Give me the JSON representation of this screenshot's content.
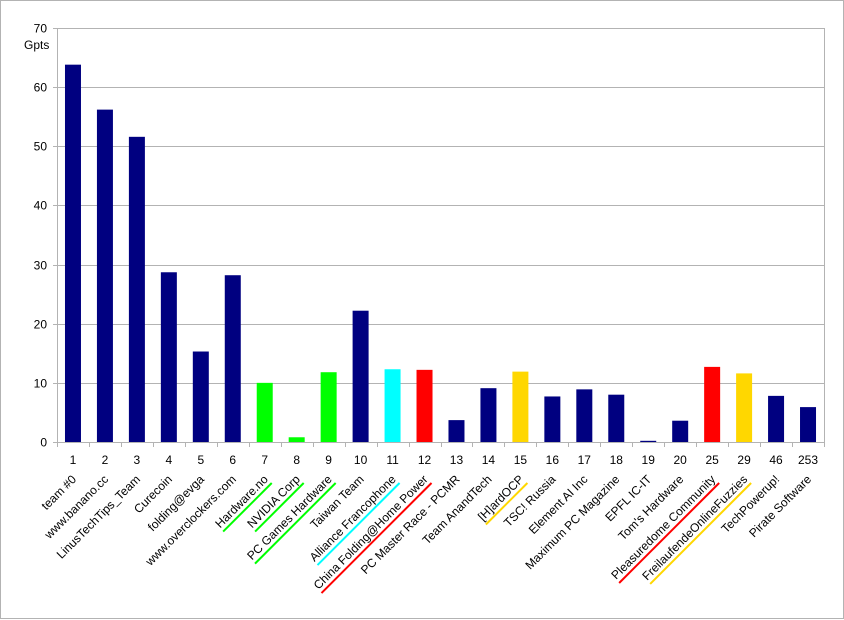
{
  "chart_data": {
    "type": "bar",
    "ylabel": "Gpts",
    "ylim": [
      0,
      70
    ],
    "yticks": [
      0,
      10,
      20,
      30,
      40,
      50,
      60,
      70
    ],
    "grid": true,
    "legend": "none",
    "categories": [
      "1",
      "2",
      "3",
      "4",
      "5",
      "6",
      "7",
      "8",
      "9",
      "10",
      "11",
      "12",
      "13",
      "14",
      "15",
      "16",
      "17",
      "18",
      "19",
      "20",
      "25",
      "29",
      "46",
      "253"
    ],
    "team_names": [
      "team #0",
      "www.banano.cc",
      "LinusTechTips_Team",
      "Curecoin",
      "folding@evga",
      "www.overclockers.com",
      "Hardware.no",
      "NVIDIA Corp",
      "PC Games Hardware",
      "Taiwan Team",
      "Alliance Francophone",
      "China Folding@Home Power",
      "PC Master Race - PCMR",
      "Team AnandTech",
      "[H]ardOCP",
      "TSC! Russia",
      "Element AI Inc",
      "Maximum PC Magazine",
      "EPFL IC-IT",
      "Tom's Hardware",
      "Pleasuredome Community",
      "FreilaufendeOnlineFuzzies",
      "TechPowerup!",
      "Pirate Software"
    ],
    "values": [
      63.8,
      56.2,
      51.6,
      28.7,
      15.3,
      28.2,
      10.0,
      0.8,
      11.8,
      22.2,
      12.3,
      12.2,
      3.7,
      9.1,
      11.9,
      7.7,
      8.9,
      8.0,
      0.2,
      3.6,
      12.7,
      11.6,
      7.8,
      5.9
    ],
    "colors": [
      "#000080",
      "#000080",
      "#000080",
      "#000080",
      "#000080",
      "#000080",
      "#00ff00",
      "#00ff00",
      "#00ff00",
      "#000080",
      "#00ffff",
      "#ff0000",
      "#000080",
      "#000080",
      "#ffd700",
      "#000080",
      "#000080",
      "#000080",
      "#000080",
      "#000080",
      "#ff0000",
      "#ffd700",
      "#000080",
      "#000080"
    ],
    "grid_color": "#b3b3b3",
    "axis_color": "#b3b3b3"
  }
}
